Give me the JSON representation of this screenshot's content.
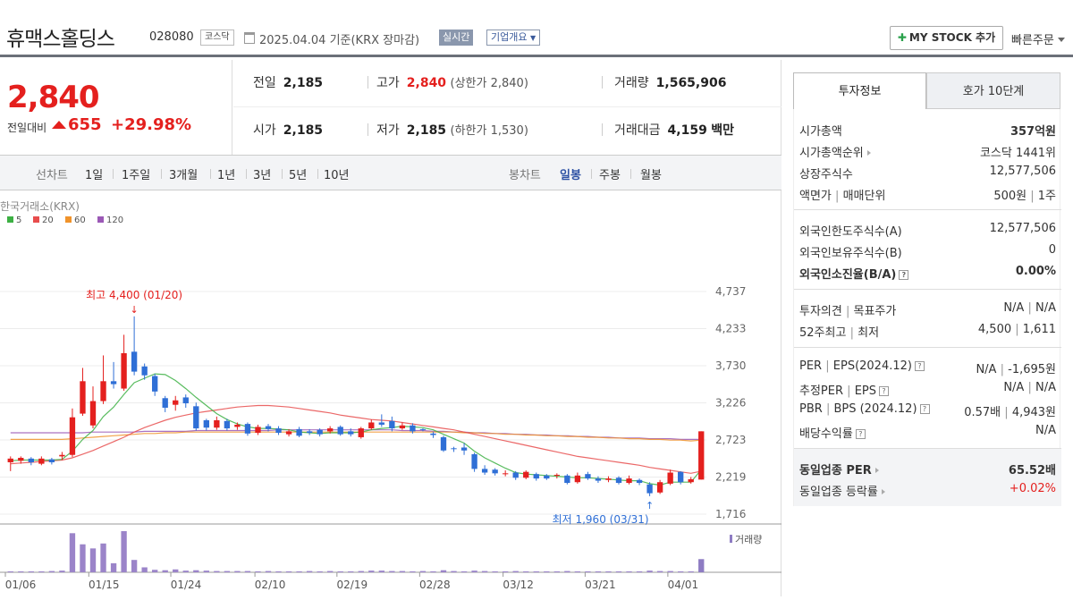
{
  "header": {
    "name": "휴맥스홀딩스",
    "code": "028080",
    "market": "코스닥",
    "date": "2025.04.04  기준(KRX 장마감)",
    "live": "실시간",
    "company_info": "기업개요",
    "mystock": "MY STOCK 추가",
    "quick_order": "빠른주문"
  },
  "price": {
    "current": "2,840",
    "change_label": "전일대비",
    "change": "655",
    "change_pct": "+29.98%"
  },
  "stats": {
    "prev_close_label": "전일",
    "prev_close": "2,185",
    "high_label": "고가",
    "high": "2,840",
    "upper_limit": "(상한가 2,840)",
    "volume_label": "거래량",
    "volume": "1,565,906",
    "open_label": "시가",
    "open": "2,185",
    "low_label": "저가",
    "low": "2,185",
    "lower_limit": "(하한가 1,530)",
    "amount_label": "거래대금",
    "amount": "4,159",
    "amount_unit": "백만"
  },
  "period_bar": {
    "line_label": "선차트",
    "line_periods": [
      "1일",
      "1주일",
      "3개월",
      "1년",
      "3년",
      "5년",
      "10년"
    ],
    "candle_label": "봉차트",
    "candle_periods": [
      "일봉",
      "주봉",
      "월봉"
    ],
    "active_candle": "일봉"
  },
  "chart_data": {
    "type": "candlestick",
    "source": "한국거래소(KRX)",
    "legend": [
      {
        "name": "5",
        "color": "#3cb043"
      },
      {
        "name": "20",
        "color": "#e84d4d"
      },
      {
        "name": "60",
        "color": "#f0932b"
      },
      {
        "name": "120",
        "color": "#9b59b6"
      }
    ],
    "y_ticks": [
      "4,737",
      "4,233",
      "3,730",
      "3,226",
      "2,723",
      "2,219",
      "1,716"
    ],
    "ylim": [
      1716,
      4737
    ],
    "x_ticks": [
      "01/06",
      "01/15",
      "01/24",
      "02/10",
      "02/19",
      "02/28",
      "03/12",
      "03/21",
      "04/01"
    ],
    "high_annotation": "최고 4,400 (01/20)",
    "low_annotation": "최저 1,960 (03/31)",
    "volume_label": "거래량",
    "candles": [
      {
        "o": 2420,
        "c": 2470,
        "h": 2500,
        "l": 2300
      },
      {
        "o": 2440,
        "c": 2480,
        "h": 2500,
        "l": 2400
      },
      {
        "o": 2470,
        "c": 2420,
        "h": 2490,
        "l": 2380
      },
      {
        "o": 2400,
        "c": 2470,
        "h": 2500,
        "l": 2380
      },
      {
        "o": 2460,
        "c": 2420,
        "h": 2480,
        "l": 2390
      },
      {
        "o": 2500,
        "c": 2520,
        "h": 2560,
        "l": 2450
      },
      {
        "o": 2520,
        "c": 3030,
        "h": 3150,
        "l": 2490
      },
      {
        "o": 3080,
        "c": 3520,
        "h": 3700,
        "l": 3050
      },
      {
        "o": 2920,
        "c": 3250,
        "h": 3450,
        "l": 2880
      },
      {
        "o": 3250,
        "c": 3520,
        "h": 3870,
        "l": 3210
      },
      {
        "o": 3520,
        "c": 3480,
        "h": 3780,
        "l": 3420
      },
      {
        "o": 3420,
        "c": 3900,
        "h": 4150,
        "l": 3390
      },
      {
        "o": 3920,
        "c": 3650,
        "h": 4400,
        "l": 3600
      },
      {
        "o": 3720,
        "c": 3600,
        "h": 3760,
        "l": 3540
      },
      {
        "o": 3590,
        "c": 3380,
        "h": 3620,
        "l": 3320
      },
      {
        "o": 3290,
        "c": 3160,
        "h": 3320,
        "l": 3100
      },
      {
        "o": 3200,
        "c": 3260,
        "h": 3320,
        "l": 3120
      },
      {
        "o": 3300,
        "c": 3220,
        "h": 3340,
        "l": 3160
      },
      {
        "o": 3180,
        "c": 2880,
        "h": 3230,
        "l": 2850
      },
      {
        "o": 2990,
        "c": 2890,
        "h": 3010,
        "l": 2850
      },
      {
        "o": 2890,
        "c": 2990,
        "h": 3040,
        "l": 2860
      },
      {
        "o": 2980,
        "c": 2880,
        "h": 3010,
        "l": 2850
      },
      {
        "o": 2900,
        "c": 2930,
        "h": 2960,
        "l": 2860
      },
      {
        "o": 2940,
        "c": 2810,
        "h": 2960,
        "l": 2780
      },
      {
        "o": 2820,
        "c": 2900,
        "h": 2930,
        "l": 2790
      },
      {
        "o": 2910,
        "c": 2870,
        "h": 2940,
        "l": 2840
      },
      {
        "o": 2880,
        "c": 2820,
        "h": 2910,
        "l": 2790
      },
      {
        "o": 2800,
        "c": 2840,
        "h": 2870,
        "l": 2770
      },
      {
        "o": 2870,
        "c": 2780,
        "h": 2900,
        "l": 2760
      },
      {
        "o": 2840,
        "c": 2820,
        "h": 2870,
        "l": 2790
      },
      {
        "o": 2860,
        "c": 2800,
        "h": 2880,
        "l": 2770
      },
      {
        "o": 2840,
        "c": 2880,
        "h": 2910,
        "l": 2810
      },
      {
        "o": 2900,
        "c": 2800,
        "h": 2920,
        "l": 2780
      },
      {
        "o": 2840,
        "c": 2800,
        "h": 2880,
        "l": 2770
      },
      {
        "o": 2760,
        "c": 2880,
        "h": 2900,
        "l": 2740
      },
      {
        "o": 2880,
        "c": 2960,
        "h": 3000,
        "l": 2860
      },
      {
        "o": 2960,
        "c": 2930,
        "h": 3070,
        "l": 2900
      },
      {
        "o": 2980,
        "c": 2880,
        "h": 3040,
        "l": 2840
      },
      {
        "o": 2880,
        "c": 2920,
        "h": 2960,
        "l": 2860
      },
      {
        "o": 2920,
        "c": 2840,
        "h": 2950,
        "l": 2810
      },
      {
        "o": 2870,
        "c": 2860,
        "h": 2880,
        "l": 2840
      },
      {
        "o": 2810,
        "c": 2790,
        "h": 2830,
        "l": 2750
      },
      {
        "o": 2760,
        "c": 2580,
        "h": 2780,
        "l": 2560
      },
      {
        "o": 2610,
        "c": 2600,
        "h": 2630,
        "l": 2560
      },
      {
        "o": 2620,
        "c": 2580,
        "h": 2680,
        "l": 2520
      },
      {
        "o": 2530,
        "c": 2330,
        "h": 2550,
        "l": 2290
      },
      {
        "o": 2330,
        "c": 2280,
        "h": 2380,
        "l": 2250
      },
      {
        "o": 2320,
        "c": 2270,
        "h": 2340,
        "l": 2240
      },
      {
        "o": 2270,
        "c": 2270,
        "h": 2310,
        "l": 2230
      },
      {
        "o": 2280,
        "c": 2210,
        "h": 2300,
        "l": 2180
      },
      {
        "o": 2210,
        "c": 2290,
        "h": 2310,
        "l": 2190
      },
      {
        "o": 2260,
        "c": 2200,
        "h": 2280,
        "l": 2170
      },
      {
        "o": 2240,
        "c": 2200,
        "h": 2260,
        "l": 2180
      },
      {
        "o": 2240,
        "c": 2250,
        "h": 2270,
        "l": 2200
      },
      {
        "o": 2240,
        "c": 2140,
        "h": 2260,
        "l": 2120
      },
      {
        "o": 2150,
        "c": 2240,
        "h": 2280,
        "l": 2130
      },
      {
        "o": 2260,
        "c": 2200,
        "h": 2290,
        "l": 2180
      },
      {
        "o": 2200,
        "c": 2170,
        "h": 2230,
        "l": 2140
      },
      {
        "o": 2180,
        "c": 2200,
        "h": 2230,
        "l": 2150
      },
      {
        "o": 2210,
        "c": 2140,
        "h": 2230,
        "l": 2120
      },
      {
        "o": 2140,
        "c": 2200,
        "h": 2240,
        "l": 2120
      },
      {
        "o": 2180,
        "c": 2140,
        "h": 2200,
        "l": 2110
      },
      {
        "o": 2120,
        "c": 2000,
        "h": 2150,
        "l": 1960
      },
      {
        "o": 2010,
        "c": 2150,
        "h": 2180,
        "l": 1990
      },
      {
        "o": 2130,
        "c": 2280,
        "h": 2320,
        "l": 2110
      },
      {
        "o": 2290,
        "c": 2150,
        "h": 2300,
        "l": 2120
      },
      {
        "o": 2150,
        "c": 2190,
        "h": 2220,
        "l": 2130
      },
      {
        "o": 2185,
        "c": 2840,
        "h": 2840,
        "l": 2185
      }
    ],
    "ma5": [
      2440,
      2450,
      2450,
      2450,
      2450,
      2460,
      2570,
      2730,
      2850,
      3040,
      3170,
      3340,
      3500,
      3560,
      3620,
      3610,
      3530,
      3420,
      3300,
      3190,
      3080,
      3000,
      2940,
      2900,
      2880,
      2880,
      2870,
      2860,
      2830,
      2820,
      2810,
      2820,
      2820,
      2820,
      2830,
      2860,
      2880,
      2890,
      2910,
      2900,
      2890,
      2860,
      2800,
      2740,
      2680,
      2570,
      2480,
      2410,
      2340,
      2280,
      2260,
      2250,
      2240,
      2230,
      2220,
      2210,
      2210,
      2200,
      2190,
      2180,
      2170,
      2170,
      2130,
      2110,
      2150,
      2150,
      2150,
      2320
    ],
    "ma20": [
      2400,
      2410,
      2420,
      2430,
      2440,
      2450,
      2480,
      2530,
      2580,
      2640,
      2700,
      2760,
      2830,
      2890,
      2940,
      2990,
      3030,
      3060,
      3090,
      3110,
      3130,
      3150,
      3170,
      3180,
      3190,
      3190,
      3180,
      3170,
      3150,
      3130,
      3110,
      3090,
      3060,
      3040,
      3020,
      3000,
      2990,
      2980,
      2960,
      2940,
      2920,
      2900,
      2880,
      2860,
      2830,
      2800,
      2770,
      2740,
      2710,
      2680,
      2650,
      2620,
      2590,
      2560,
      2530,
      2500,
      2480,
      2460,
      2440,
      2420,
      2400,
      2380,
      2350,
      2330,
      2310,
      2290,
      2270,
      2300
    ],
    "ma60": [
      2730,
      2730,
      2730,
      2730,
      2730,
      2730,
      2740,
      2750,
      2760,
      2770,
      2780,
      2790,
      2800,
      2810,
      2810,
      2820,
      2820,
      2830,
      2830,
      2830,
      2830,
      2830,
      2830,
      2830,
      2830,
      2830,
      2830,
      2830,
      2830,
      2830,
      2830,
      2830,
      2830,
      2830,
      2830,
      2830,
      2830,
      2830,
      2830,
      2830,
      2830,
      2830,
      2830,
      2830,
      2820,
      2820,
      2810,
      2810,
      2800,
      2800,
      2790,
      2790,
      2780,
      2780,
      2770,
      2770,
      2760,
      2760,
      2750,
      2750,
      2740,
      2740,
      2730,
      2730,
      2720,
      2720,
      2710,
      2720
    ],
    "ma120": [
      2820,
      2820,
      2820,
      2820,
      2820,
      2820,
      2820,
      2820,
      2830,
      2830,
      2830,
      2830,
      2830,
      2840,
      2840,
      2840,
      2840,
      2840,
      2850,
      2850,
      2850,
      2850,
      2850,
      2850,
      2850,
      2850,
      2860,
      2860,
      2860,
      2860,
      2860,
      2860,
      2860,
      2860,
      2860,
      2860,
      2860,
      2860,
      2850,
      2850,
      2850,
      2840,
      2840,
      2830,
      2830,
      2820,
      2820,
      2810,
      2810,
      2800,
      2800,
      2790,
      2790,
      2780,
      2780,
      2770,
      2770,
      2760,
      2760,
      2750,
      2750,
      2750,
      2740,
      2740,
      2740,
      2730,
      2730,
      2730
    ],
    "volume_rel": [
      0.02,
      0.02,
      0.02,
      0.02,
      0.03,
      0.04,
      0.95,
      0.68,
      0.58,
      0.7,
      0.22,
      1.0,
      0.3,
      0.12,
      0.06,
      0.05,
      0.07,
      0.04,
      0.05,
      0.04,
      0.03,
      0.03,
      0.03,
      0.03,
      0.02,
      0.03,
      0.02,
      0.02,
      0.02,
      0.03,
      0.02,
      0.03,
      0.02,
      0.02,
      0.03,
      0.04,
      0.04,
      0.03,
      0.03,
      0.02,
      0.03,
      0.02,
      0.05,
      0.03,
      0.02,
      0.04,
      0.03,
      0.02,
      0.02,
      0.03,
      0.02,
      0.02,
      0.02,
      0.02,
      0.03,
      0.02,
      0.02,
      0.02,
      0.02,
      0.02,
      0.02,
      0.02,
      0.04,
      0.03,
      0.03,
      0.02,
      0.02,
      0.32
    ]
  },
  "side": {
    "tab1": "투자정보",
    "tab2": "호가 10단계",
    "market_cap_label": "시가총액",
    "market_cap": "357억원",
    "rank_label": "시가총액순위",
    "rank": "코스닥 1441위",
    "shares_label": "상장주식수",
    "shares": "12,577,506",
    "par_label_a": "액면가",
    "par_label_b": "매매단위",
    "par": "500원",
    "unit": "1주",
    "foreign_limit_label": "외국인한도주식수(A)",
    "foreign_limit": "12,577,506",
    "foreign_hold_label": "외국인보유주식수(B)",
    "foreign_hold": "0",
    "foreign_ratio_label": "외국인소진율(B/A)",
    "foreign_ratio": "0.00%",
    "opinion_label_a": "투자의견",
    "opinion_label_b": "목표주가",
    "opinion": "N/A",
    "target": "N/A",
    "w52_label_a": "52주최고",
    "w52_label_b": "최저",
    "w52_high": "4,500",
    "w52_low": "1,611",
    "per_label_a": "PER",
    "per_label_b": "EPS(2024.12)",
    "per": "N/A",
    "eps": "-1,695원",
    "eper_label_a": "추정PER",
    "eper_label_b": "EPS",
    "eper": "N/A",
    "eeps": "N/A",
    "pbr_label_a": "PBR",
    "pbr_label_b": "BPS (2024.12)",
    "pbr": "0.57배",
    "bps": "4,943원",
    "div_label": "배당수익률",
    "div": "N/A",
    "sector_per_label": "동일업종 PER",
    "sector_per": "65.52배",
    "sector_chg_label": "동일업종 등락률",
    "sector_chg": "+0.02%"
  }
}
